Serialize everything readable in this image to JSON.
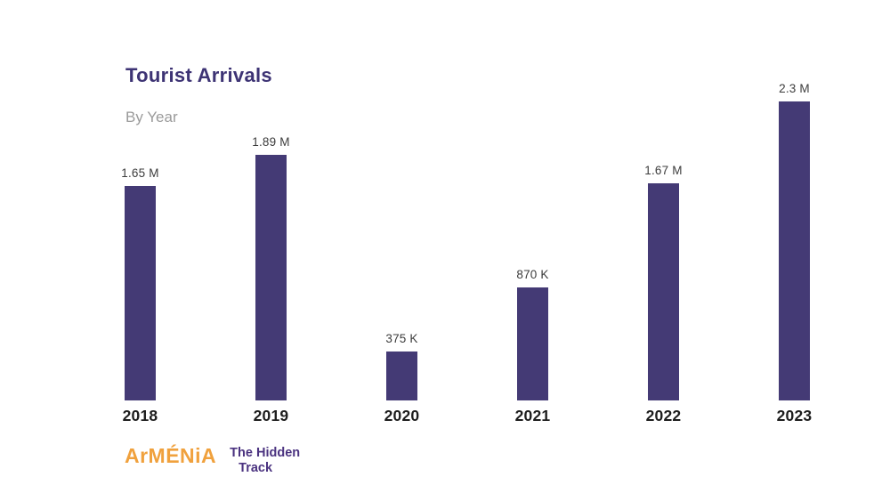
{
  "header": {
    "title": "Tourist Arrivals",
    "subtitle": "By Year"
  },
  "chart_data": {
    "type": "bar",
    "title": "Tourist Arrivals",
    "subtitle": "By Year",
    "xlabel": "",
    "ylabel": "",
    "categories": [
      "2018",
      "2019",
      "2020",
      "2021",
      "2022",
      "2023"
    ],
    "values_millions": [
      1.65,
      1.89,
      0.375,
      0.87,
      1.67,
      2.3
    ],
    "value_labels": [
      "1.65 M",
      "1.89 M",
      "375 K",
      "870 K",
      "1.67 M",
      "2.3 M"
    ],
    "bar_color": "#443a75",
    "grid": false,
    "axis_lines": "none",
    "legend": "none"
  },
  "footer": {
    "logo_primary": "ArMÉNiA",
    "logo_secondary_line1": "The Hidden",
    "logo_secondary_line2": "Track",
    "logo_primary_color": "#f0a13d",
    "logo_secondary_color": "#4b3380"
  }
}
